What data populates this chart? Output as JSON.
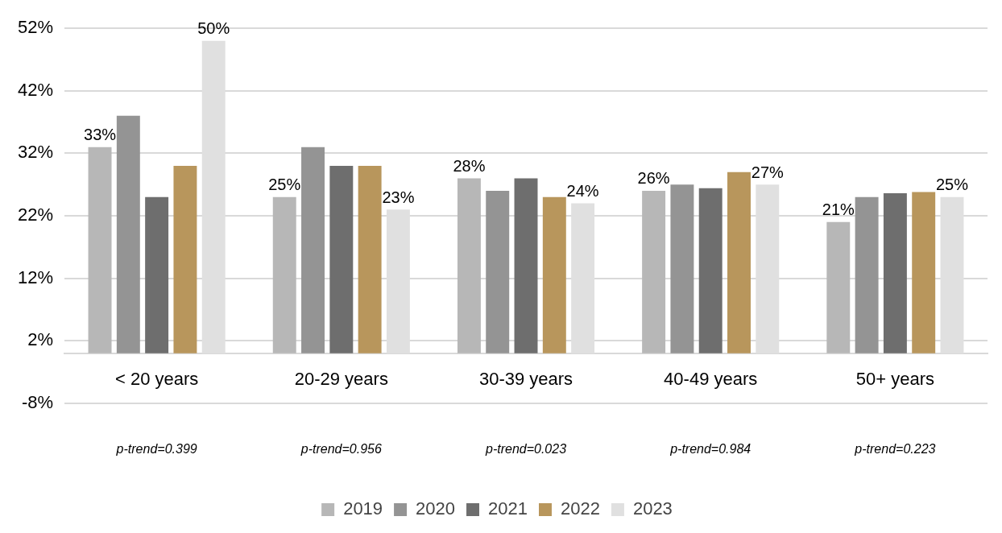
{
  "chart_data": {
    "type": "bar",
    "categories": [
      "< 20 years",
      "20-29 years",
      "30-39 years",
      "40-49 years",
      "50+ years"
    ],
    "series": [
      {
        "name": "2019",
        "color": "#b7b7b7",
        "values": [
          33,
          25,
          28,
          26,
          21
        ],
        "value_labels": [
          "33%",
          "25%",
          "28%",
          "26%",
          "21%"
        ]
      },
      {
        "name": "2020",
        "color": "#949494",
        "values": [
          38,
          33,
          26,
          27,
          25
        ]
      },
      {
        "name": "2021",
        "color": "#6e6e6e",
        "values": [
          25,
          30,
          28,
          26.4,
          25.6
        ]
      },
      {
        "name": "2022",
        "color": "#b8965c",
        "values": [
          30,
          30,
          25,
          29,
          25.8
        ]
      },
      {
        "name": "2023",
        "color": "#e0e0e0",
        "values": [
          50,
          23,
          24,
          27,
          25
        ],
        "value_labels": [
          "50%",
          "23%",
          "24%",
          "27%",
          "25%"
        ]
      }
    ],
    "ylim": [
      -8,
      52
    ],
    "yticks": [
      {
        "value": -8,
        "label": "-8%"
      },
      {
        "value": 2,
        "label": "2%"
      },
      {
        "value": 12,
        "label": "12%"
      },
      {
        "value": 22,
        "label": "22%"
      },
      {
        "value": 32,
        "label": "32%"
      },
      {
        "value": 42,
        "label": "42%"
      },
      {
        "value": 52,
        "label": "52%"
      }
    ],
    "grid": "y",
    "legend": "bottom",
    "annotations": [
      "p-trend=0.399",
      "p-trend=0.956",
      "p-trend=0.023",
      "p-trend=0.984",
      "p-trend=0.223"
    ]
  }
}
